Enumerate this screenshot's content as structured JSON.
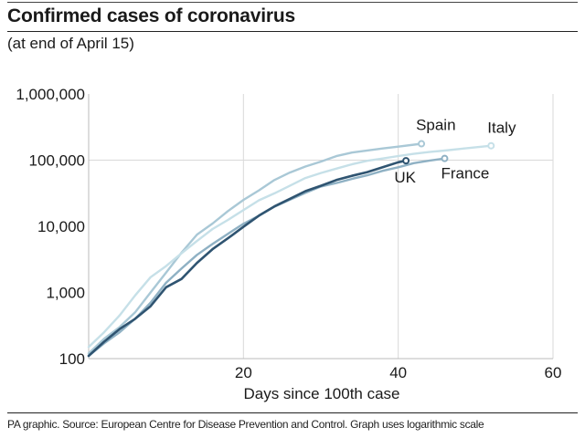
{
  "header": {
    "title": "Confirmed cases of coronavirus",
    "subtitle": "(at end of April 15)"
  },
  "footer": {
    "text": "PA graphic. Source: European Centre for Disease Prevention and Control. Graph uses logarithmic scale"
  },
  "chart_data": {
    "type": "line",
    "title": "Confirmed cases of coronavirus",
    "subtitle": "(at end of April 15)",
    "xlabel": "Days since 100th case",
    "ylabel": "",
    "yscale": "log",
    "xlim": [
      0,
      60
    ],
    "ylim": [
      100,
      1000000
    ],
    "xticks": [
      20,
      40,
      60
    ],
    "xtick_labels": [
      "20",
      "40",
      "60"
    ],
    "yticks": [
      100,
      1000,
      10000,
      100000,
      1000000
    ],
    "ytick_labels": [
      "100",
      "1,000",
      "10,000",
      "100,000",
      "1,000,000"
    ],
    "grid": "vertical lines at x ticks; horizontal line at 100,000",
    "legend": "direct labels at line ends",
    "series": [
      {
        "name": "Spain",
        "color": "#a9c8d6",
        "x": [
          0,
          2,
          4,
          6,
          8,
          10,
          12,
          14,
          16,
          18,
          20,
          22,
          24,
          26,
          28,
          30,
          32,
          34,
          36,
          38,
          40,
          43
        ],
        "y": [
          120,
          200,
          300,
          500,
          1000,
          2000,
          4000,
          7500,
          11000,
          17000,
          25000,
          35000,
          50000,
          65000,
          80000,
          95000,
          115000,
          130000,
          140000,
          150000,
          160000,
          177000
        ]
      },
      {
        "name": "Italy",
        "color": "#c6e0e8",
        "x": [
          0,
          2,
          4,
          6,
          8,
          10,
          12,
          14,
          16,
          18,
          20,
          22,
          24,
          26,
          28,
          30,
          32,
          34,
          36,
          38,
          40,
          42,
          44,
          46,
          48,
          50,
          52
        ],
        "y": [
          150,
          250,
          450,
          900,
          1700,
          2500,
          3900,
          6000,
          9100,
          12500,
          17600,
          24700,
          31500,
          41000,
          53600,
          63900,
          74400,
          86500,
          97700,
          105800,
          115200,
          124600,
          132500,
          139400,
          147600,
          156400,
          165000
        ]
      },
      {
        "name": "France",
        "color": "#8fb1c4",
        "x": [
          0,
          2,
          4,
          6,
          8,
          10,
          12,
          14,
          16,
          18,
          20,
          22,
          24,
          26,
          28,
          30,
          32,
          34,
          36,
          38,
          40,
          42,
          44,
          46
        ],
        "y": [
          110,
          170,
          250,
          400,
          700,
          1400,
          2300,
          3700,
          5400,
          7700,
          10900,
          14400,
          19800,
          25200,
          32000,
          40000,
          45000,
          52000,
          59000,
          69000,
          78000,
          90000,
          98000,
          106000
        ]
      },
      {
        "name": "UK",
        "color": "#2f5471",
        "x": [
          0,
          2,
          4,
          6,
          8,
          10,
          12,
          14,
          16,
          18,
          20,
          22,
          24,
          26,
          28,
          30,
          32,
          34,
          36,
          38,
          40,
          41
        ],
        "y": [
          110,
          180,
          280,
          400,
          620,
          1200,
          1600,
          2800,
          4500,
          6600,
          9800,
          14500,
          20000,
          26000,
          34000,
          41000,
          50000,
          58000,
          66000,
          78000,
          93000,
          98000
        ]
      }
    ]
  }
}
